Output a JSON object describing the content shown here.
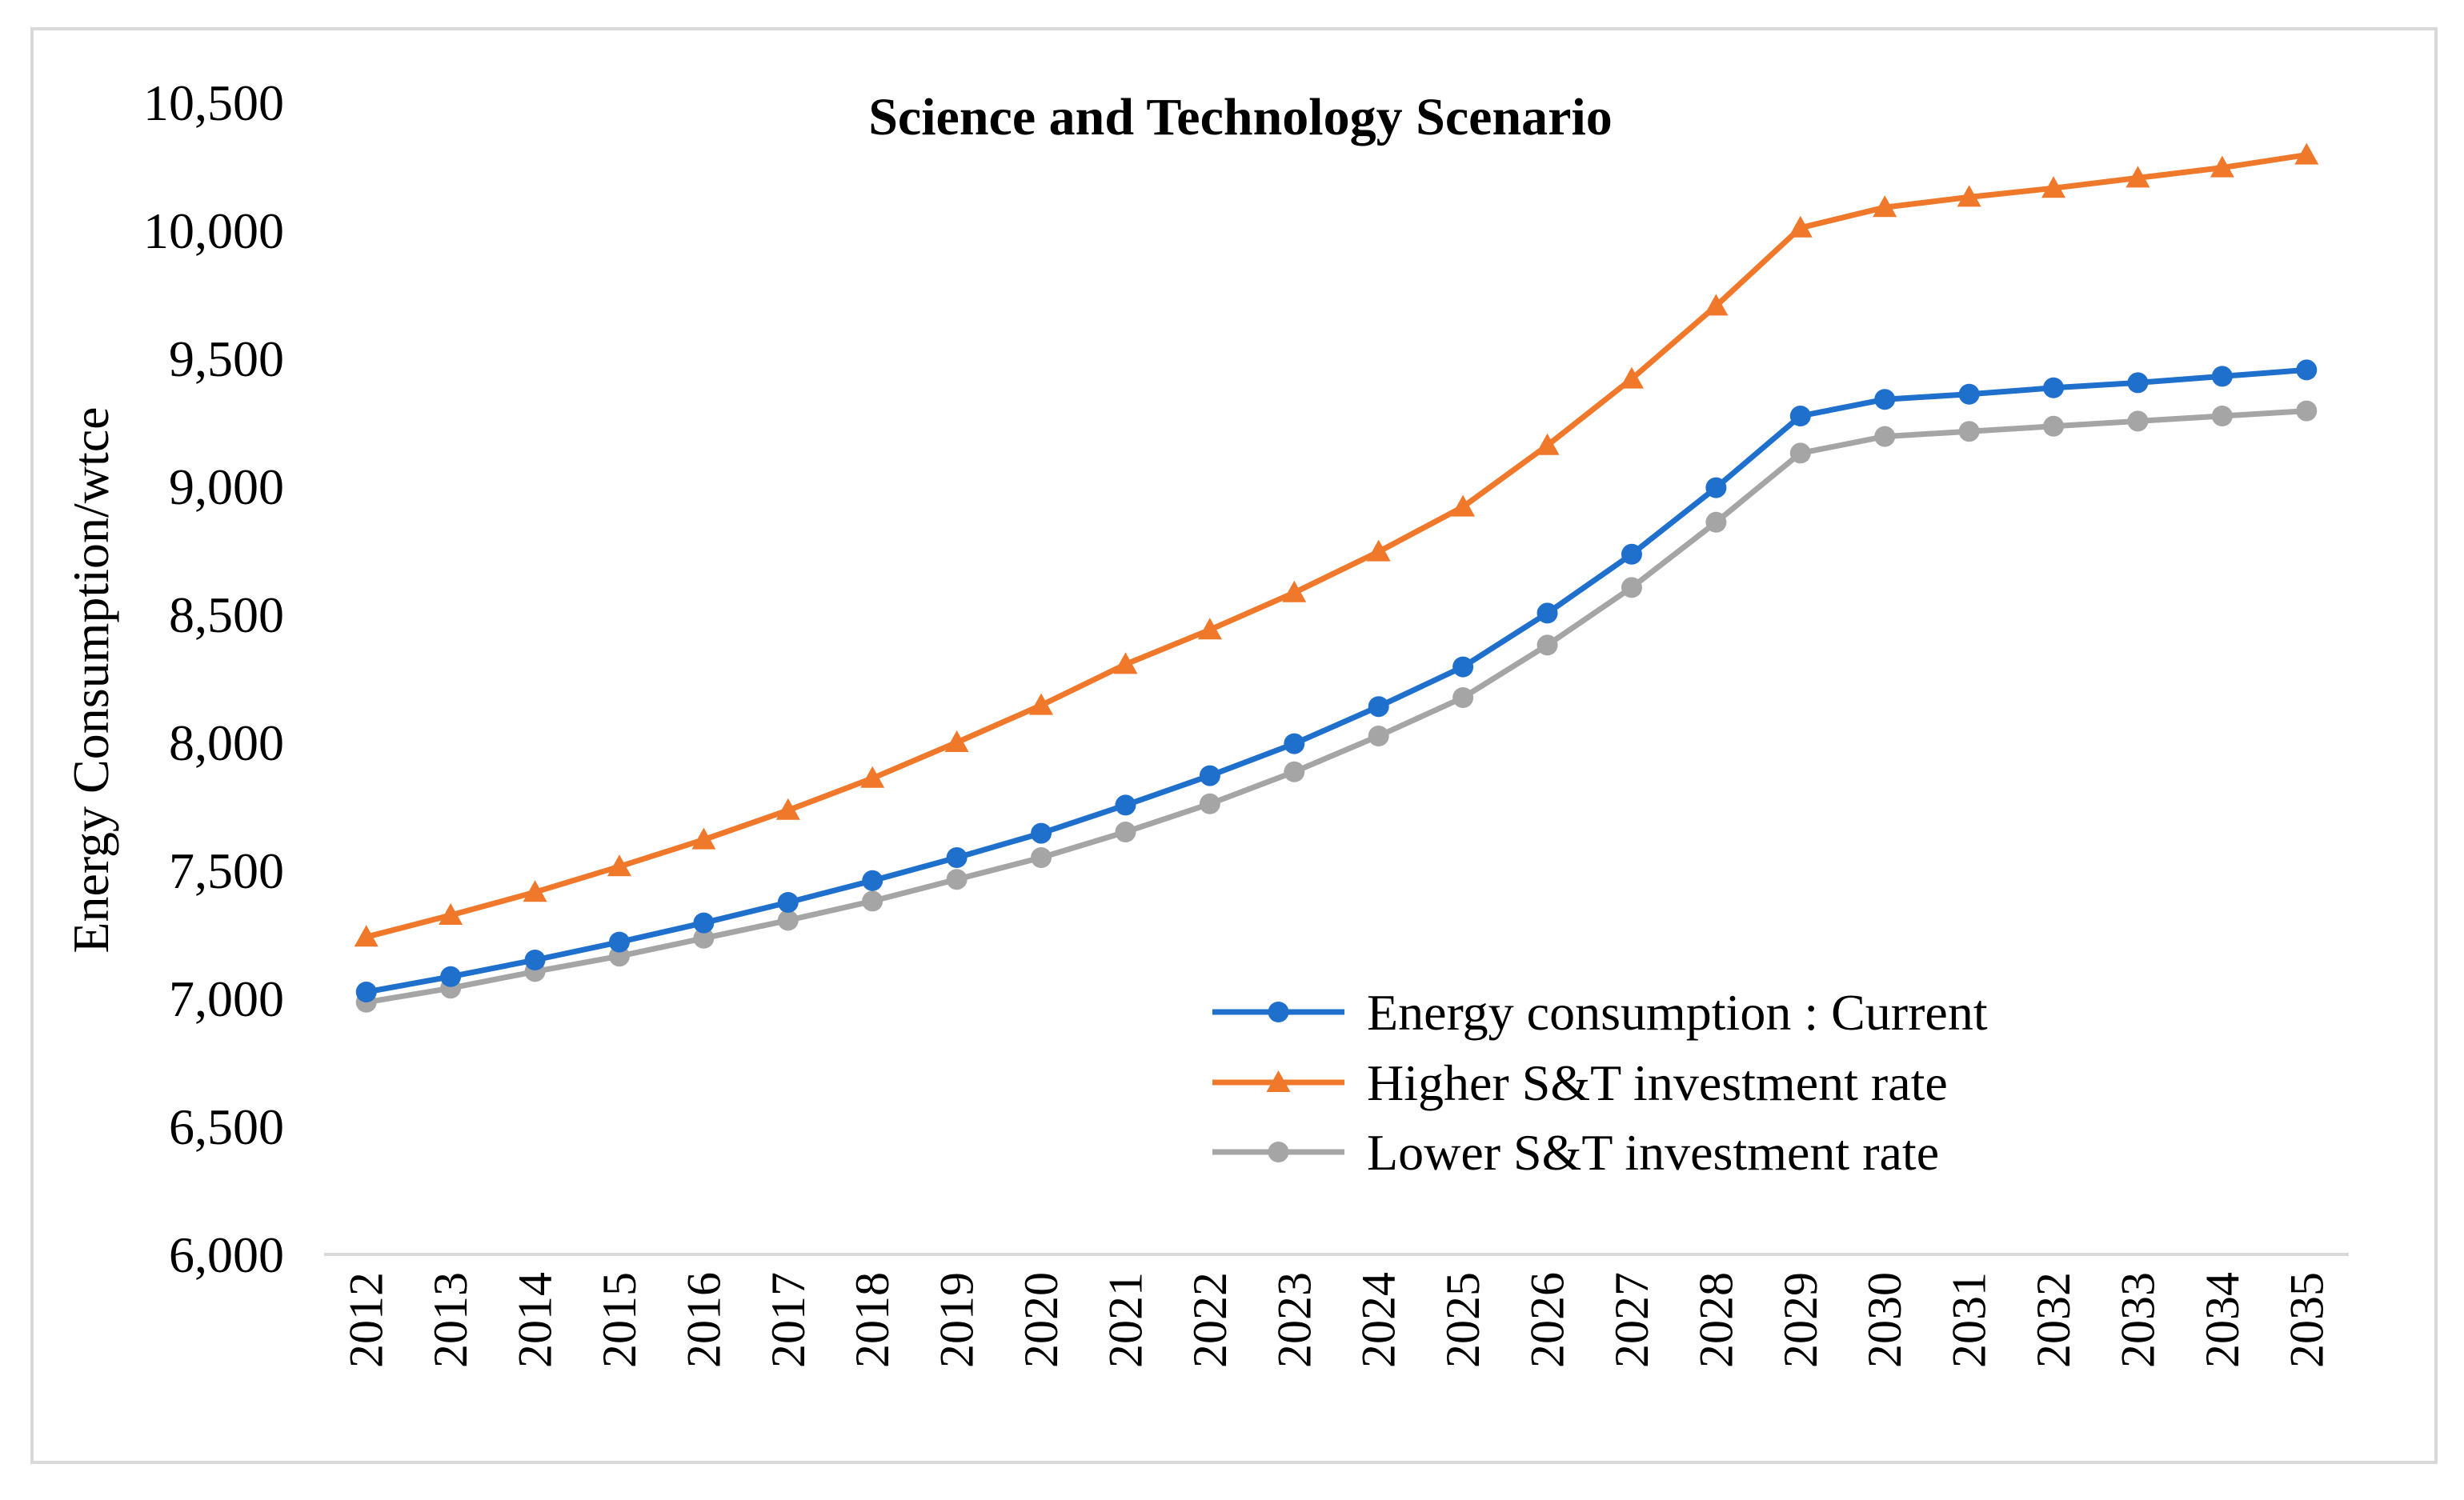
{
  "chart_data": {
    "type": "line",
    "title": "Science and Technology Scenario",
    "xlabel": "",
    "ylabel": "Energy Consumption/wtce",
    "ylim": [
      6000,
      10500
    ],
    "yticks": [
      6000,
      6500,
      7000,
      7500,
      8000,
      8500,
      9000,
      9500,
      10000,
      10500
    ],
    "ytick_labels": [
      "6,000",
      "6,500",
      "7,000",
      "7,500",
      "8,000",
      "8,500",
      "9,000",
      "9,500",
      "10,000",
      "10,500"
    ],
    "categories": [
      "2012",
      "2013",
      "2014",
      "2015",
      "2016",
      "2017",
      "2018",
      "2019",
      "2020",
      "2021",
      "2022",
      "2023",
      "2024",
      "2025",
      "2026",
      "2027",
      "2028",
      "2029",
      "2030",
      "2031",
      "2032",
      "2033",
      "2034",
      "2035"
    ],
    "legend_position": "bottom-right",
    "grid": false,
    "series": [
      {
        "name": "Energy consumption : Current",
        "color": "#1f6fcc",
        "marker": "circle",
        "values": [
          7025,
          7085,
          7150,
          7220,
          7295,
          7375,
          7460,
          7550,
          7645,
          7755,
          7870,
          7995,
          8140,
          8295,
          8505,
          8735,
          8995,
          9275,
          9340,
          9360,
          9385,
          9405,
          9430,
          9455
        ]
      },
      {
        "name": "Higher S&T investment rate",
        "color": "#f0782a",
        "marker": "triangle",
        "values": [
          7240,
          7325,
          7415,
          7515,
          7620,
          7735,
          7860,
          8000,
          8145,
          8305,
          8440,
          8585,
          8745,
          8920,
          9160,
          9420,
          9705,
          10010,
          10090,
          10130,
          10165,
          10205,
          10245,
          10295
        ]
      },
      {
        "name": "Lower S&T investment rate",
        "color": "#a5a5a5",
        "marker": "circle",
        "values": [
          6985,
          7040,
          7105,
          7165,
          7235,
          7305,
          7380,
          7465,
          7550,
          7650,
          7760,
          7885,
          8025,
          8175,
          8380,
          8605,
          8860,
          9130,
          9195,
          9215,
          9235,
          9255,
          9275,
          9295
        ]
      }
    ]
  }
}
